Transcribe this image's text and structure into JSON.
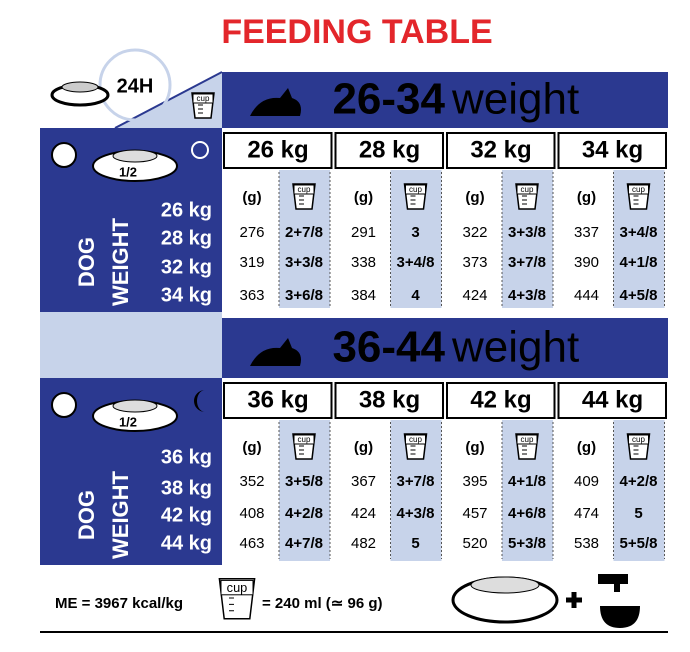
{
  "title": "FEEDING TABLE",
  "period": "24H",
  "cup_label": "cup",
  "sections": [
    {
      "range": "26-34",
      "unit": "weight",
      "portion": "1/2",
      "side_label": [
        "DOG",
        "WEIGHT"
      ],
      "dog_weights": [
        "26 kg",
        "28 kg",
        "32 kg",
        "34 kg"
      ],
      "columns": [
        "26 kg",
        "28 kg",
        "32 kg",
        "34 kg"
      ],
      "grams_header": "(g)",
      "rows": [
        [
          [
            "276",
            "2+7/8"
          ],
          [
            "291",
            "3"
          ],
          [
            "322",
            "3+3/8"
          ],
          [
            "337",
            "3+4/8"
          ]
        ],
        [
          [
            "319",
            "3+3/8"
          ],
          [
            "338",
            "3+4/8"
          ],
          [
            "373",
            "3+7/8"
          ],
          [
            "390",
            "4+1/8"
          ]
        ],
        [
          [
            "363",
            "3+6/8"
          ],
          [
            "384",
            "4"
          ],
          [
            "424",
            "4+3/8"
          ],
          [
            "444",
            "4+5/8"
          ]
        ]
      ]
    },
    {
      "range": "36-44",
      "unit": "weight",
      "portion": "1/2",
      "side_label": [
        "DOG",
        "WEIGHT"
      ],
      "dog_weights": [
        "36 kg",
        "38 kg",
        "42 kg",
        "44 kg"
      ],
      "columns": [
        "36 kg",
        "38 kg",
        "42 kg",
        "44 kg"
      ],
      "grams_header": "(g)",
      "rows": [
        [
          [
            "352",
            "3+5/8"
          ],
          [
            "367",
            "3+7/8"
          ],
          [
            "395",
            "4+1/8"
          ],
          [
            "409",
            "4+2/8"
          ]
        ],
        [
          [
            "408",
            "4+2/8"
          ],
          [
            "424",
            "4+3/8"
          ],
          [
            "457",
            "4+6/8"
          ],
          [
            "474",
            "5"
          ]
        ],
        [
          [
            "463",
            "4+7/8"
          ],
          [
            "482",
            "5"
          ],
          [
            "520",
            "5+3/8"
          ],
          [
            "538",
            "5+5/8"
          ]
        ]
      ]
    }
  ],
  "footer": {
    "energy": "ME = 3967 kcal/kg",
    "cup_volume": "= 240 ml (≃ 96 g)"
  }
}
